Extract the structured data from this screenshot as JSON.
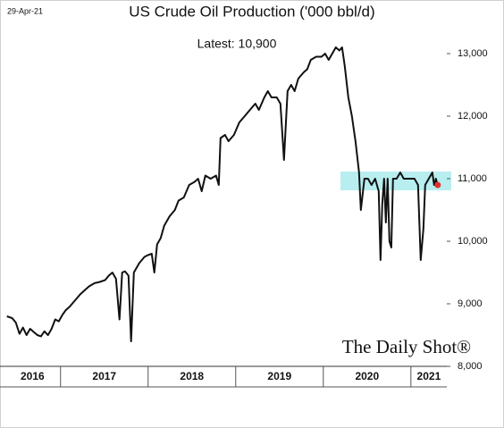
{
  "chart_data": {
    "type": "line",
    "date": "29-Apr-21",
    "title": "US Crude Oil Production ('000 bbl/d)",
    "annotation": "Latest:  10,900",
    "watermark": "The Daily Shot®",
    "color": "#111111",
    "last_point_color": "#e03030",
    "x": [
      2016.388,
      2016.449,
      2016.49,
      2016.531,
      2016.571,
      2016.612,
      2016.653,
      2016.694,
      2016.735,
      2016.776,
      2016.816,
      2016.857,
      2016.898,
      2016.939,
      2016.98,
      2017.02,
      2017.061,
      2017.102,
      2017.163,
      2017.224,
      2017.286,
      2017.327,
      2017.388,
      2017.449,
      2017.51,
      2017.551,
      2017.592,
      2017.633,
      2017.673,
      2017.704,
      2017.735,
      2017.776,
      2017.806,
      2017.837,
      2017.898,
      2017.959,
      2018.0,
      2018.041,
      2018.071,
      2018.102,
      2018.143,
      2018.184,
      2018.245,
      2018.306,
      2018.347,
      2018.408,
      2018.469,
      2018.531,
      2018.571,
      2018.612,
      2018.653,
      2018.714,
      2018.776,
      2018.806,
      2018.827,
      2018.878,
      2018.918,
      2018.98,
      2019.041,
      2019.102,
      2019.163,
      2019.224,
      2019.265,
      2019.327,
      2019.367,
      2019.408,
      2019.469,
      2019.51,
      2019.551,
      2019.592,
      2019.633,
      2019.673,
      2019.714,
      2019.776,
      2019.816,
      2019.857,
      2019.918,
      2019.98,
      2020.02,
      2020.061,
      2020.102,
      2020.143,
      2020.184,
      2020.214,
      2020.245,
      2020.286,
      2020.327,
      2020.367,
      2020.408,
      2020.429,
      2020.469,
      2020.51,
      2020.551,
      2020.592,
      2020.633,
      2020.653,
      2020.673,
      2020.694,
      2020.714,
      2020.735,
      2020.755,
      2020.776,
      2020.796,
      2020.837,
      2020.878,
      2020.918,
      2020.959,
      2021.0,
      2021.041,
      2021.082,
      2021.112,
      2021.143,
      2021.163,
      2021.204,
      2021.245,
      2021.265,
      2021.286,
      2021.306
    ],
    "values": [
      8800,
      8770,
      8700,
      8520,
      8620,
      8500,
      8600,
      8550,
      8500,
      8480,
      8560,
      8500,
      8600,
      8750,
      8720,
      8820,
      8900,
      8950,
      9050,
      9150,
      9230,
      9280,
      9330,
      9350,
      9380,
      9450,
      9500,
      9400,
      8750,
      9500,
      9520,
      9450,
      8400,
      9500,
      9650,
      9750,
      9780,
      9800,
      9500,
      9950,
      10050,
      10250,
      10400,
      10500,
      10650,
      10700,
      10900,
      10950,
      11000,
      10800,
      11050,
      11000,
      11050,
      10900,
      11650,
      11700,
      11600,
      11700,
      11900,
      12000,
      12100,
      12200,
      12100,
      12300,
      12400,
      12300,
      12300,
      12200,
      11300,
      12400,
      12500,
      12400,
      12600,
      12700,
      12750,
      12900,
      12950,
      12950,
      13000,
      12900,
      13000,
      13100,
      13050,
      13100,
      12800,
      12300,
      12000,
      11600,
      11100,
      10500,
      11000,
      11000,
      10900,
      11000,
      10800,
      9700,
      10600,
      11000,
      10300,
      11000,
      10000,
      9900,
      11000,
      11000,
      11100,
      11000,
      11000,
      11000,
      11000,
      10900,
      9700,
      10200,
      10900,
      11000,
      11100,
      10900,
      11000,
      10900
    ],
    "xlim": [
      2016.36,
      2021.41
    ],
    "xticks": [
      2016,
      2017,
      2018,
      2019,
      2020,
      2021
    ],
    "ylim": [
      8000,
      13000
    ],
    "yticks": [
      {
        "value": 8000,
        "label": "8,000"
      },
      {
        "value": 9000,
        "label": "9,000"
      },
      {
        "value": 10000,
        "label": "10,000"
      },
      {
        "value": 11000,
        "label": "11,000"
      },
      {
        "value": 12000,
        "label": "12,000"
      },
      {
        "value": 13000,
        "label": "13,000"
      }
    ]
  }
}
